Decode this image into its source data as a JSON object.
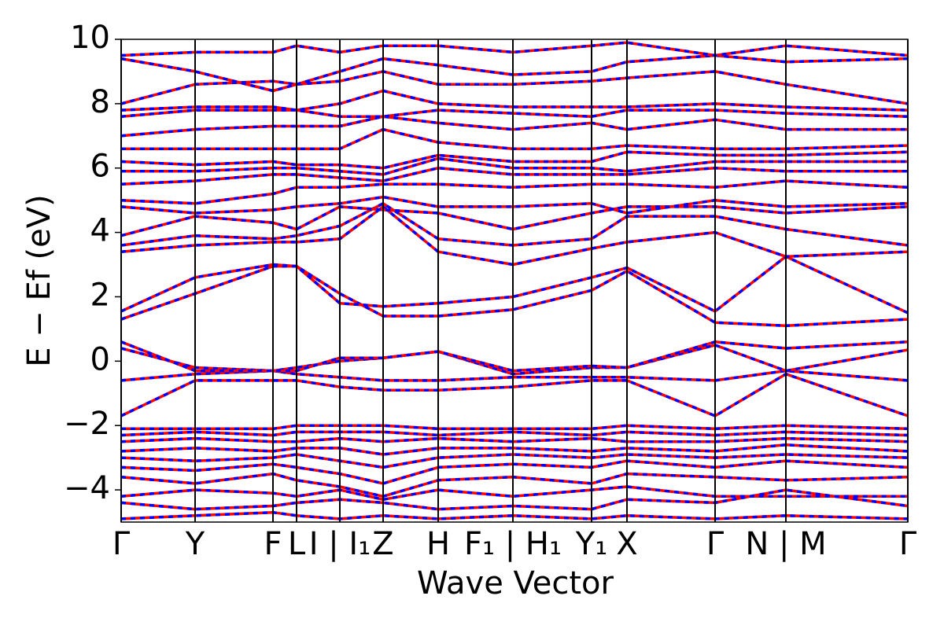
{
  "chart_data": {
    "type": "line",
    "y_label": "E − Ef (eV)",
    "x_label": "Wave Vector",
    "x": [
      0,
      0.094,
      0.193,
      0.223,
      0.278,
      0.333,
      0.403,
      0.498,
      0.598,
      0.643,
      0.755,
      0.845,
      1.0
    ],
    "xlim": [
      0,
      1.0
    ],
    "xticks": [
      {
        "value": 0,
        "label": "Γ"
      },
      {
        "value": 0.094,
        "label": "Y"
      },
      {
        "value": 0.193,
        "label": "F"
      },
      {
        "value": 0.223,
        "label": "L"
      },
      {
        "value": 0.278,
        "label": "I | I₁"
      },
      {
        "value": 0.333,
        "label": "Z"
      },
      {
        "value": 0.403,
        "label": "H"
      },
      {
        "value": 0.498,
        "label": "F₁ | H₁"
      },
      {
        "value": 0.598,
        "label": "Y₁"
      },
      {
        "value": 0.643,
        "label": "X"
      },
      {
        "value": 0.755,
        "label": "Γ"
      },
      {
        "value": 0.845,
        "label": "N | M"
      },
      {
        "value": 1.0,
        "label": "Γ"
      }
    ],
    "ylim": [
      -5,
      10
    ],
    "yticks": [
      {
        "value": -4,
        "label": "−4"
      },
      {
        "value": -2,
        "label": "−2"
      },
      0,
      2,
      4,
      6,
      8,
      10
    ],
    "line_color": "#ff0000",
    "dash_color": "#0000ff",
    "series": [
      {
        "values": [
          -4.9,
          -4.8,
          -4.7,
          -4.8,
          -4.9,
          -4.8,
          -4.9,
          -4.8,
          -4.9,
          -4.8,
          -4.9,
          -4.8,
          -4.9
        ]
      },
      {
        "values": [
          -4.4,
          -4.6,
          -4.5,
          -4.4,
          -4.3,
          -4.4,
          -4.6,
          -4.5,
          -4.6,
          -4.3,
          -4.4,
          -4.0,
          -4.5
        ]
      },
      {
        "values": [
          -4.2,
          -4.0,
          -4.1,
          -4.2,
          -4.0,
          -4.3,
          -4.0,
          -4.2,
          -4.0,
          -3.9,
          -4.2,
          -4.2,
          -4.2
        ]
      },
      {
        "values": [
          -3.6,
          -3.8,
          -3.5,
          -3.7,
          -3.9,
          -4.2,
          -3.7,
          -3.6,
          -3.8,
          -3.5,
          -3.6,
          -3.7,
          -3.6
        ]
      },
      {
        "values": [
          -3.3,
          -3.4,
          -3.2,
          -3.3,
          -3.5,
          -3.8,
          -3.3,
          -3.2,
          -3.3,
          -3.1,
          -3.3,
          -3.1,
          -3.3
        ]
      },
      {
        "values": [
          -3.0,
          -3.1,
          -3.0,
          -2.9,
          -3.1,
          -3.3,
          -3.0,
          -2.9,
          -3.0,
          -2.9,
          -3.0,
          -2.9,
          -3.0
        ]
      },
      {
        "values": [
          -2.8,
          -2.7,
          -2.8,
          -2.7,
          -2.7,
          -2.9,
          -2.7,
          -2.7,
          -2.8,
          -2.7,
          -2.8,
          -2.6,
          -2.8
        ]
      },
      {
        "values": [
          -2.5,
          -2.4,
          -2.5,
          -2.5,
          -2.4,
          -2.5,
          -2.4,
          -2.5,
          -2.4,
          -2.5,
          -2.5,
          -2.4,
          -2.5
        ]
      },
      {
        "values": [
          -2.3,
          -2.2,
          -2.3,
          -2.2,
          -2.2,
          -2.2,
          -2.3,
          -2.2,
          -2.3,
          -2.2,
          -2.3,
          -2.2,
          -2.3
        ]
      },
      {
        "values": [
          -2.1,
          -2.1,
          -2.1,
          -2.0,
          -2.0,
          -2.0,
          -2.1,
          -2.1,
          -2.1,
          -2.0,
          -2.1,
          -2.0,
          -2.1
        ]
      },
      {
        "values": [
          -1.7,
          -0.6,
          -0.6,
          -0.6,
          -0.8,
          -0.9,
          -0.9,
          -0.8,
          -0.6,
          -0.6,
          -1.7,
          -0.4,
          -1.7
        ]
      },
      {
        "values": [
          -0.6,
          -0.4,
          -0.3,
          -0.4,
          -0.5,
          -0.6,
          -0.6,
          -0.5,
          -0.5,
          -0.5,
          -0.6,
          -0.3,
          -0.6
        ]
      },
      {
        "values": [
          0.4,
          -0.2,
          -0.3,
          -0.2,
          0.0,
          0.1,
          0.3,
          -0.4,
          -0.2,
          -0.2,
          0.5,
          -0.3,
          0.35
        ]
      },
      {
        "values": [
          0.6,
          -0.3,
          -0.3,
          -0.3,
          0.1,
          0.1,
          0.3,
          -0.3,
          -0.15,
          -0.2,
          0.6,
          0.4,
          0.6
        ]
      },
      {
        "values": [
          1.3,
          2.1,
          2.95,
          2.95,
          2.1,
          1.4,
          1.4,
          1.6,
          2.2,
          2.8,
          1.2,
          1.1,
          1.3
        ]
      },
      {
        "values": [
          1.55,
          2.6,
          3.0,
          2.95,
          1.8,
          1.7,
          1.8,
          2.0,
          2.6,
          2.9,
          1.55,
          3.25,
          1.5
        ]
      },
      {
        "values": [
          3.4,
          3.6,
          3.7,
          3.7,
          3.8,
          4.8,
          3.4,
          3.0,
          3.5,
          3.7,
          4.0,
          3.25,
          3.4
        ]
      },
      {
        "values": [
          3.6,
          3.9,
          3.8,
          3.9,
          4.2,
          4.9,
          3.8,
          3.6,
          3.8,
          4.5,
          4.5,
          4.1,
          3.6
        ]
      },
      {
        "values": [
          3.9,
          4.5,
          4.3,
          4.1,
          4.8,
          4.7,
          4.6,
          4.1,
          4.6,
          4.8,
          4.8,
          4.6,
          4.8
        ]
      },
      {
        "values": [
          4.8,
          4.6,
          4.7,
          4.8,
          4.9,
          5.1,
          4.8,
          4.8,
          4.9,
          4.6,
          5.0,
          4.8,
          4.9
        ]
      },
      {
        "values": [
          5.0,
          4.9,
          5.2,
          5.4,
          5.4,
          5.5,
          5.5,
          5.4,
          5.5,
          5.5,
          5.4,
          5.6,
          5.4
        ]
      },
      {
        "values": [
          5.5,
          5.6,
          5.8,
          5.8,
          5.7,
          5.6,
          6.0,
          5.8,
          5.8,
          5.8,
          6.0,
          5.9,
          5.9
        ]
      },
      {
        "values": [
          5.9,
          5.9,
          6.0,
          6.0,
          5.9,
          5.8,
          6.3,
          6.0,
          6.0,
          5.9,
          6.2,
          6.2,
          6.2
        ]
      },
      {
        "values": [
          6.2,
          6.1,
          6.2,
          6.1,
          6.1,
          6.0,
          6.4,
          6.2,
          6.2,
          6.5,
          6.4,
          6.4,
          6.5
        ]
      },
      {
        "values": [
          6.6,
          6.6,
          6.6,
          6.6,
          6.6,
          7.2,
          6.8,
          6.6,
          6.6,
          6.7,
          6.6,
          6.6,
          6.7
        ]
      },
      {
        "values": [
          7.0,
          7.2,
          7.3,
          7.3,
          7.3,
          7.6,
          7.4,
          7.2,
          7.4,
          7.2,
          7.5,
          7.2,
          7.2
        ]
      },
      {
        "values": [
          7.6,
          7.8,
          7.8,
          7.8,
          7.6,
          7.6,
          7.8,
          7.7,
          7.6,
          7.8,
          7.8,
          7.7,
          7.6
        ]
      },
      {
        "values": [
          7.8,
          7.9,
          7.9,
          7.8,
          8.0,
          8.4,
          8.0,
          7.9,
          7.9,
          7.9,
          8.0,
          7.9,
          7.8
        ]
      },
      {
        "values": [
          8.0,
          8.6,
          8.7,
          8.6,
          8.7,
          9.0,
          8.6,
          8.6,
          8.7,
          8.8,
          9.0,
          8.6,
          8.0
        ]
      },
      {
        "values": [
          9.4,
          9.0,
          8.4,
          8.6,
          9.0,
          9.4,
          9.2,
          8.9,
          9.0,
          9.3,
          9.5,
          9.3,
          9.4
        ]
      },
      {
        "values": [
          9.5,
          9.6,
          9.6,
          9.8,
          9.6,
          9.8,
          9.8,
          9.6,
          9.8,
          9.9,
          9.5,
          9.8,
          9.5
        ]
      }
    ]
  }
}
